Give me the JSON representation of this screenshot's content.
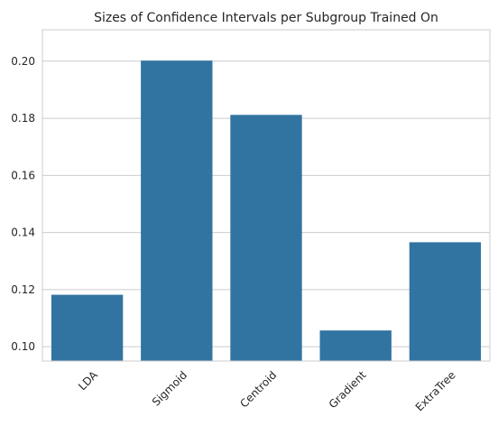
{
  "chart_data": {
    "type": "bar",
    "title": "Sizes of Confidence Intervals per Subgroup Trained On",
    "xlabel": "",
    "ylabel": "",
    "categories": [
      "LDA",
      "Sigmoid",
      "Centroid",
      "Gradient",
      "ExtraTree"
    ],
    "values": [
      0.1182,
      0.2002,
      0.1812,
      0.1057,
      0.1366
    ],
    "ylim": [
      0.095,
      0.211
    ],
    "yticks": [
      "0.10",
      "0.12",
      "0.14",
      "0.16",
      "0.18",
      "0.20"
    ],
    "grid": "horizontal",
    "legend": "none",
    "bar_color": "#3274a1"
  }
}
